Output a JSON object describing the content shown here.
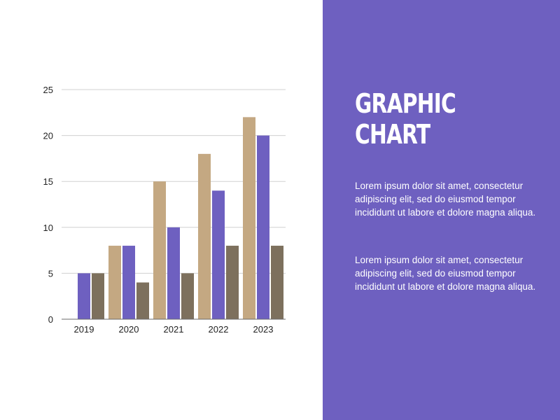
{
  "panel": {
    "title_line1": "GRAPHIC",
    "title_line2": "CHART",
    "paragraph1": "Lorem ipsum dolor sit amet, consectetur adipiscing elit, sed do eiusmod tempor incididunt ut labore et dolore magna aliqua.",
    "paragraph2": "Lorem ipsum dolor sit amet, consectetur adipiscing elit, sed do eiusmod tempor incididunt ut labore et dolore magna aliqua.",
    "background_color": "#6e60c0"
  },
  "chart_data": {
    "type": "bar",
    "title": "",
    "xlabel": "",
    "ylabel": "",
    "categories": [
      "2019",
      "2020",
      "2021",
      "2022",
      "2023"
    ],
    "series": [
      {
        "color": "#c4a882",
        "values": [
          0,
          8,
          15,
          18,
          22
        ]
      },
      {
        "color": "#6e60c0",
        "values": [
          5,
          8,
          10,
          14,
          20
        ]
      },
      {
        "color": "#7d705d",
        "values": [
          5,
          4,
          5,
          8,
          8
        ]
      }
    ],
    "ylim": [
      0,
      25
    ],
    "yticks": [
      0,
      5,
      10,
      15,
      20,
      25
    ],
    "grid": true,
    "legend": "none"
  }
}
